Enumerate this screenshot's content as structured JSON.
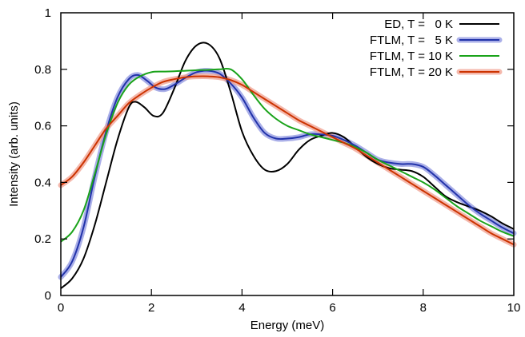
{
  "chart_data": {
    "type": "line",
    "xlabel": "Energy (meV)",
    "ylabel": "Intensity (arb. units)",
    "xlim": [
      0,
      10
    ],
    "ylim": [
      0,
      1
    ],
    "xticks": [
      0,
      2,
      4,
      6,
      8,
      10
    ],
    "yticks": [
      0,
      0.2,
      0.4,
      0.6,
      0.8,
      1
    ],
    "ytick_labels": [
      "0",
      "0.2",
      "0.4",
      "0.6",
      "0.8",
      "1"
    ],
    "grid": false,
    "legend_position": "top-right",
    "series": [
      {
        "name": "ED, T =   0 K",
        "color": "#000000",
        "band": false,
        "x": [
          0,
          0.25,
          0.5,
          0.75,
          1.0,
          1.25,
          1.5,
          1.65,
          1.85,
          2.05,
          2.25,
          2.5,
          2.75,
          3.0,
          3.25,
          3.5,
          3.75,
          4.0,
          4.25,
          4.5,
          4.75,
          5.0,
          5.25,
          5.5,
          5.75,
          6.0,
          6.25,
          6.5,
          6.75,
          7.0,
          7.25,
          7.5,
          7.75,
          8.0,
          8.25,
          8.5,
          8.75,
          9.0,
          9.25,
          9.5,
          9.75,
          10.0
        ],
        "y": [
          0.025,
          0.06,
          0.13,
          0.25,
          0.4,
          0.55,
          0.665,
          0.685,
          0.665,
          0.635,
          0.645,
          0.73,
          0.83,
          0.885,
          0.89,
          0.84,
          0.72,
          0.58,
          0.495,
          0.445,
          0.44,
          0.465,
          0.515,
          0.55,
          0.565,
          0.575,
          0.56,
          0.525,
          0.49,
          0.465,
          0.45,
          0.445,
          0.44,
          0.42,
          0.385,
          0.35,
          0.33,
          0.315,
          0.3,
          0.28,
          0.255,
          0.235
        ]
      },
      {
        "name": "FTLM, T =   5 K",
        "color": "#2233aa",
        "band_color": "#8e94e0",
        "band": true,
        "x": [
          0,
          0.25,
          0.5,
          0.75,
          1.0,
          1.25,
          1.5,
          1.7,
          1.9,
          2.1,
          2.3,
          2.5,
          2.75,
          3.0,
          3.25,
          3.5,
          3.75,
          4.0,
          4.25,
          4.5,
          4.75,
          5.0,
          5.25,
          5.5,
          5.75,
          6.0,
          6.25,
          6.5,
          6.75,
          7.0,
          7.25,
          7.5,
          7.75,
          8.0,
          8.25,
          8.5,
          8.75,
          9.0,
          9.25,
          9.5,
          9.75,
          10.0
        ],
        "y": [
          0.065,
          0.12,
          0.24,
          0.42,
          0.58,
          0.7,
          0.765,
          0.78,
          0.76,
          0.735,
          0.73,
          0.745,
          0.77,
          0.79,
          0.795,
          0.785,
          0.75,
          0.7,
          0.63,
          0.575,
          0.555,
          0.555,
          0.56,
          0.57,
          0.57,
          0.565,
          0.55,
          0.53,
          0.505,
          0.48,
          0.47,
          0.465,
          0.465,
          0.455,
          0.425,
          0.39,
          0.355,
          0.32,
          0.29,
          0.265,
          0.24,
          0.22
        ]
      },
      {
        "name": "FTLM, T = 10 K",
        "color": "#1aa31a",
        "band": false,
        "x": [
          0,
          0.25,
          0.5,
          0.75,
          1.0,
          1.25,
          1.5,
          1.75,
          2.0,
          2.25,
          2.5,
          2.75,
          3.0,
          3.25,
          3.5,
          3.75,
          4.0,
          4.25,
          4.5,
          4.75,
          5.0,
          5.25,
          5.5,
          5.75,
          6.0,
          6.25,
          6.5,
          6.75,
          7.0,
          7.25,
          7.5,
          7.75,
          8.0,
          8.25,
          8.5,
          8.75,
          9.0,
          9.25,
          9.5,
          9.75,
          10.0
        ],
        "y": [
          0.19,
          0.225,
          0.3,
          0.43,
          0.57,
          0.68,
          0.745,
          0.775,
          0.79,
          0.792,
          0.793,
          0.795,
          0.797,
          0.798,
          0.8,
          0.8,
          0.765,
          0.71,
          0.66,
          0.625,
          0.6,
          0.585,
          0.57,
          0.56,
          0.55,
          0.54,
          0.525,
          0.505,
          0.48,
          0.46,
          0.44,
          0.42,
          0.4,
          0.375,
          0.345,
          0.315,
          0.29,
          0.265,
          0.245,
          0.225,
          0.21
        ]
      },
      {
        "name": "FTLM, T = 20 K",
        "color": "#cc3300",
        "band_color": "#f0a090",
        "band": true,
        "x": [
          0,
          0.25,
          0.5,
          0.75,
          1.0,
          1.25,
          1.5,
          1.75,
          2.0,
          2.25,
          2.5,
          2.75,
          3.0,
          3.25,
          3.5,
          3.75,
          4.0,
          4.25,
          4.5,
          4.75,
          5.0,
          5.25,
          5.5,
          5.75,
          6.0,
          6.25,
          6.5,
          6.75,
          7.0,
          7.25,
          7.5,
          7.75,
          8.0,
          8.25,
          8.5,
          8.75,
          9.0,
          9.25,
          9.5,
          9.75,
          10.0
        ],
        "y": [
          0.39,
          0.42,
          0.47,
          0.53,
          0.59,
          0.635,
          0.68,
          0.71,
          0.735,
          0.755,
          0.765,
          0.772,
          0.775,
          0.775,
          0.772,
          0.762,
          0.745,
          0.72,
          0.695,
          0.67,
          0.645,
          0.62,
          0.6,
          0.58,
          0.56,
          0.54,
          0.52,
          0.495,
          0.47,
          0.445,
          0.42,
          0.395,
          0.37,
          0.345,
          0.32,
          0.295,
          0.27,
          0.245,
          0.22,
          0.2,
          0.18
        ]
      }
    ]
  }
}
